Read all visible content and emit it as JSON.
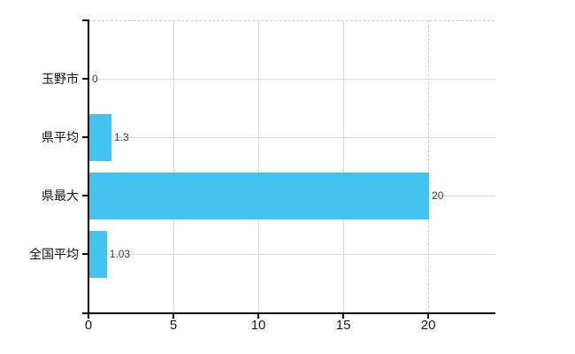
{
  "chart": {
    "background_color": "#ffffff",
    "bar_color": "#42c3f0",
    "grid_color": "#dadada",
    "axis_color": "#000000",
    "value_label_color": "#3d3d3d",
    "category_label_color": "#111111"
  },
  "chart_data": {
    "type": "bar",
    "orientation": "horizontal",
    "title": "",
    "categories": [
      "玉野市",
      "県平均",
      "県最大",
      "全国平均"
    ],
    "values": [
      0,
      1.3,
      20,
      1.03
    ],
    "value_labels": [
      "0",
      "1.3",
      "20",
      "1.03"
    ],
    "x_tick_values": [
      0,
      5,
      10,
      15,
      20
    ],
    "x_tick_labels": [
      "0",
      "5",
      "10",
      "15",
      "20"
    ],
    "xlim": [
      0,
      23.95
    ],
    "grid": true,
    "legend_position": "none",
    "dashed_gridline_value": 20,
    "notes": "top plot border dashed; gridline at 20 dashed; bars start at left axis"
  }
}
